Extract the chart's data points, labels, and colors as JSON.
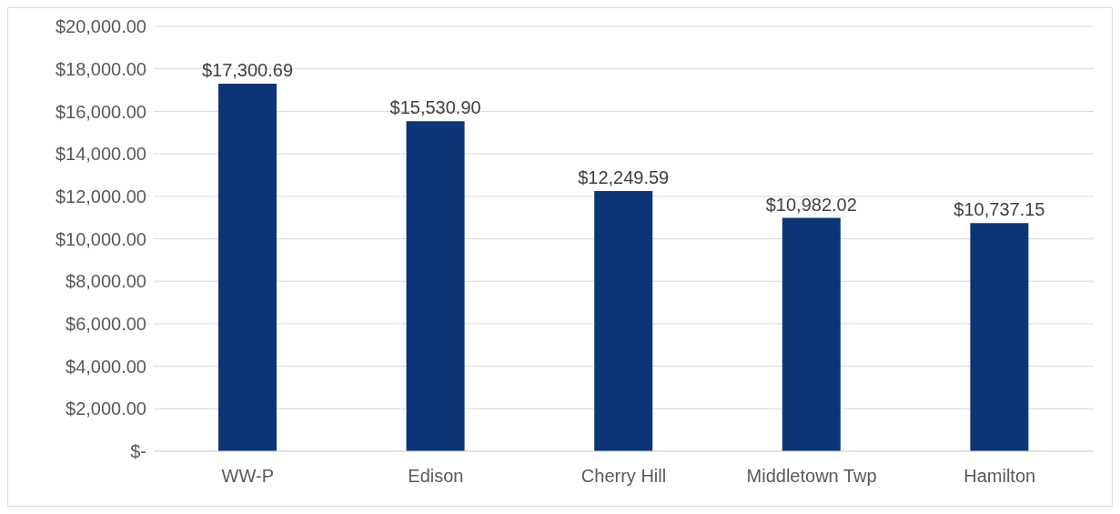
{
  "chart_data": {
    "type": "bar",
    "categories": [
      "WW-P",
      "Edison",
      "Cherry Hill",
      "Middletown Twp",
      "Hamilton"
    ],
    "values": [
      17300.69,
      15530.9,
      12249.59,
      10982.02,
      10737.15
    ],
    "value_labels": [
      "$17,300.69",
      "$15,530.90",
      "$12,249.59",
      "$10,982.02",
      "$10,737.15"
    ],
    "color": "#0b3577",
    "ylim": [
      0,
      20000
    ],
    "yticks": [
      {
        "value": 0,
        "label": "$-"
      },
      {
        "value": 2000,
        "label": "$2,000.00"
      },
      {
        "value": 4000,
        "label": "$4,000.00"
      },
      {
        "value": 6000,
        "label": "$6,000.00"
      },
      {
        "value": 8000,
        "label": "$8,000.00"
      },
      {
        "value": 10000,
        "label": "$10,000.00"
      },
      {
        "value": 12000,
        "label": "$12,000.00"
      },
      {
        "value": 14000,
        "label": "$14,000.00"
      },
      {
        "value": 16000,
        "label": "$16,000.00"
      },
      {
        "value": 18000,
        "label": "$18,000.00"
      },
      {
        "value": 20000,
        "label": "$20,000.00"
      }
    ],
    "grid": "y",
    "legend": false
  }
}
